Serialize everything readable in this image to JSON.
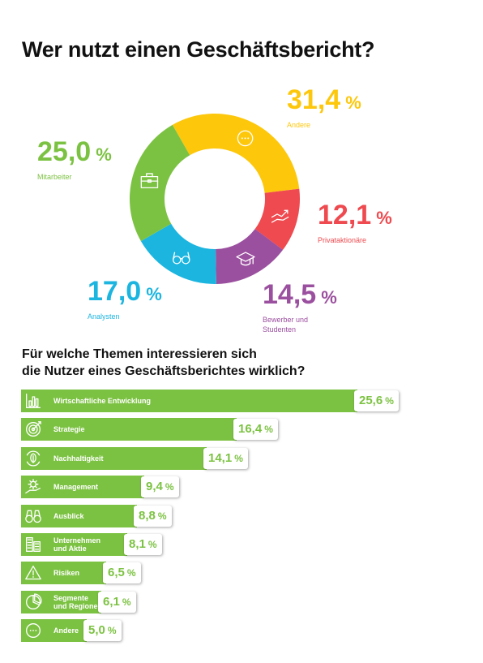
{
  "title": "Wer nutzt einen Geschäftsbericht?",
  "subtitle": "Für welche Themen interessieren sich\ndie Nutzer eines Geschäftsberichtes wirklich?",
  "colors": {
    "green": "#7cc242",
    "yellow": "#fdc70c",
    "red": "#ee4a4f",
    "purple": "#9b4f9f",
    "blue": "#1bb5e0"
  },
  "chart_data": [
    {
      "type": "pie",
      "title": "Wer nutzt einen Geschäftsbericht?",
      "slices": [
        {
          "label": "Andere",
          "value": 31.4,
          "value_text": "31,4",
          "color": "#fdc70c",
          "icon": "dots-icon"
        },
        {
          "label": "Privataktionäre",
          "value": 12.1,
          "value_text": "12,1",
          "color": "#ee4a4f",
          "icon": "hand-chart-icon"
        },
        {
          "label": "Bewerber und\nStudenten",
          "value": 14.5,
          "value_text": "14,5",
          "color": "#9b4f9f",
          "icon": "graduation-cap-icon"
        },
        {
          "label": "Analysten",
          "value": 17.0,
          "value_text": "17,0",
          "color": "#1bb5e0",
          "icon": "glasses-icon"
        },
        {
          "label": "Mitarbeiter",
          "value": 25.0,
          "value_text": "25,0",
          "color": "#7cc242",
          "icon": "briefcase-icon"
        }
      ],
      "unit": "%"
    },
    {
      "type": "bar",
      "orientation": "horizontal",
      "title": "Für welche Themen interessieren sich die Nutzer eines Geschäftsberichtes wirklich?",
      "bars": [
        {
          "label": "Wirtschaftliche Entwicklung",
          "value": 25.6,
          "value_text": "25,6",
          "icon": "bar-chart-icon"
        },
        {
          "label": "Strategie",
          "value": 16.4,
          "value_text": "16,4",
          "icon": "target-icon"
        },
        {
          "label": "Nachhaltigkeit",
          "value": 14.1,
          "value_text": "14,1",
          "icon": "leaf-cycle-icon"
        },
        {
          "label": "Management",
          "value": 9.4,
          "value_text": "9,4",
          "icon": "gear-hand-icon"
        },
        {
          "label": "Ausblick",
          "value": 8.8,
          "value_text": "8,8",
          "icon": "binoculars-icon"
        },
        {
          "label": "Unternehmen\nund Aktie",
          "value": 8.1,
          "value_text": "8,1",
          "icon": "building-chart-icon"
        },
        {
          "label": "Risiken",
          "value": 6.5,
          "value_text": "6,5",
          "icon": "warning-icon"
        },
        {
          "label": "Segmente\nund Regionen",
          "value": 6.1,
          "value_text": "6,1",
          "icon": "pie-icon"
        },
        {
          "label": "Andere",
          "value": 5.0,
          "value_text": "5,0",
          "icon": "dots-icon"
        }
      ],
      "unit": "%",
      "color": "#7cc242"
    }
  ]
}
